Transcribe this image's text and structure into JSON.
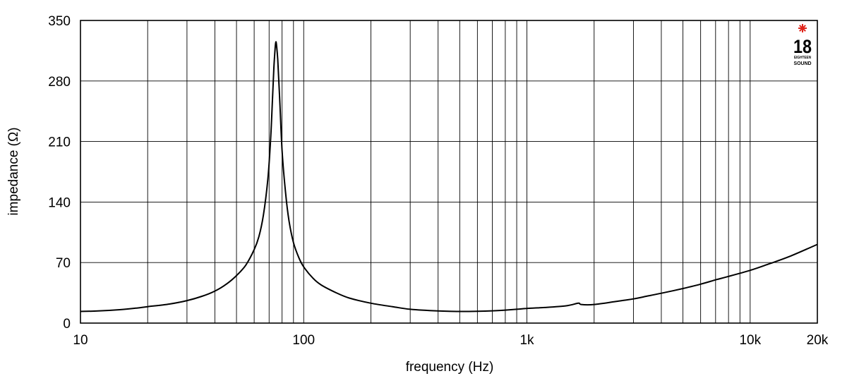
{
  "chart_data": {
    "type": "line",
    "title": "",
    "xlabel": "frequency (Hz)",
    "ylabel": "impedance (Ω)",
    "x_scale": "log",
    "xlim": [
      10,
      20000
    ],
    "ylim": [
      0,
      350
    ],
    "x_ticks": [
      {
        "value": 10,
        "label": "10"
      },
      {
        "value": 100,
        "label": "100"
      },
      {
        "value": 1000,
        "label": "1k"
      },
      {
        "value": 10000,
        "label": "10k"
      },
      {
        "value": 20000,
        "label": "20k"
      }
    ],
    "y_ticks": [
      {
        "value": 0,
        "label": "0"
      },
      {
        "value": 70,
        "label": "70"
      },
      {
        "value": 140,
        "label": "140"
      },
      {
        "value": 210,
        "label": "210"
      },
      {
        "value": 280,
        "label": "280"
      },
      {
        "value": 350,
        "label": "350"
      }
    ],
    "grid": true,
    "series": [
      {
        "color": "#000000",
        "points": [
          [
            10,
            13.5
          ],
          [
            12,
            14
          ],
          [
            15,
            15.5
          ],
          [
            18,
            17.5
          ],
          [
            20,
            19
          ],
          [
            25,
            22
          ],
          [
            30,
            26
          ],
          [
            35,
            31
          ],
          [
            40,
            37
          ],
          [
            45,
            45
          ],
          [
            50,
            55
          ],
          [
            55,
            67
          ],
          [
            60,
            85
          ],
          [
            63,
            100
          ],
          [
            66,
            125
          ],
          [
            69,
            165
          ],
          [
            71,
            210
          ],
          [
            72.5,
            260
          ],
          [
            73.5,
            295
          ],
          [
            74.5,
            318
          ],
          [
            75,
            325
          ],
          [
            75.5,
            322
          ],
          [
            76.5,
            305
          ],
          [
            78,
            262
          ],
          [
            80,
            200
          ],
          [
            83,
            150
          ],
          [
            86,
            118
          ],
          [
            90,
            93
          ],
          [
            95,
            76
          ],
          [
            100,
            65
          ],
          [
            110,
            52
          ],
          [
            120,
            44
          ],
          [
            140,
            35
          ],
          [
            160,
            29
          ],
          [
            200,
            23
          ],
          [
            250,
            19
          ],
          [
            300,
            16
          ],
          [
            400,
            14
          ],
          [
            500,
            13.5
          ],
          [
            600,
            13.7
          ],
          [
            700,
            14.2
          ],
          [
            800,
            15
          ],
          [
            900,
            16
          ],
          [
            1000,
            17
          ],
          [
            1200,
            18
          ],
          [
            1500,
            20
          ],
          [
            1700,
            23
          ],
          [
            1750,
            21.5
          ],
          [
            2000,
            21.5
          ],
          [
            2500,
            25
          ],
          [
            3000,
            28
          ],
          [
            3500,
            31.5
          ],
          [
            4000,
            34.5
          ],
          [
            5000,
            40
          ],
          [
            6000,
            45
          ],
          [
            7000,
            50
          ],
          [
            8000,
            54
          ],
          [
            10000,
            61
          ],
          [
            12000,
            68
          ],
          [
            15000,
            77
          ],
          [
            20000,
            91
          ]
        ]
      }
    ],
    "legend": "none"
  },
  "logo": {
    "number": "18",
    "line1": "EIGHTEEN",
    "line2": "SOUND",
    "star_color": "#e0241b"
  }
}
